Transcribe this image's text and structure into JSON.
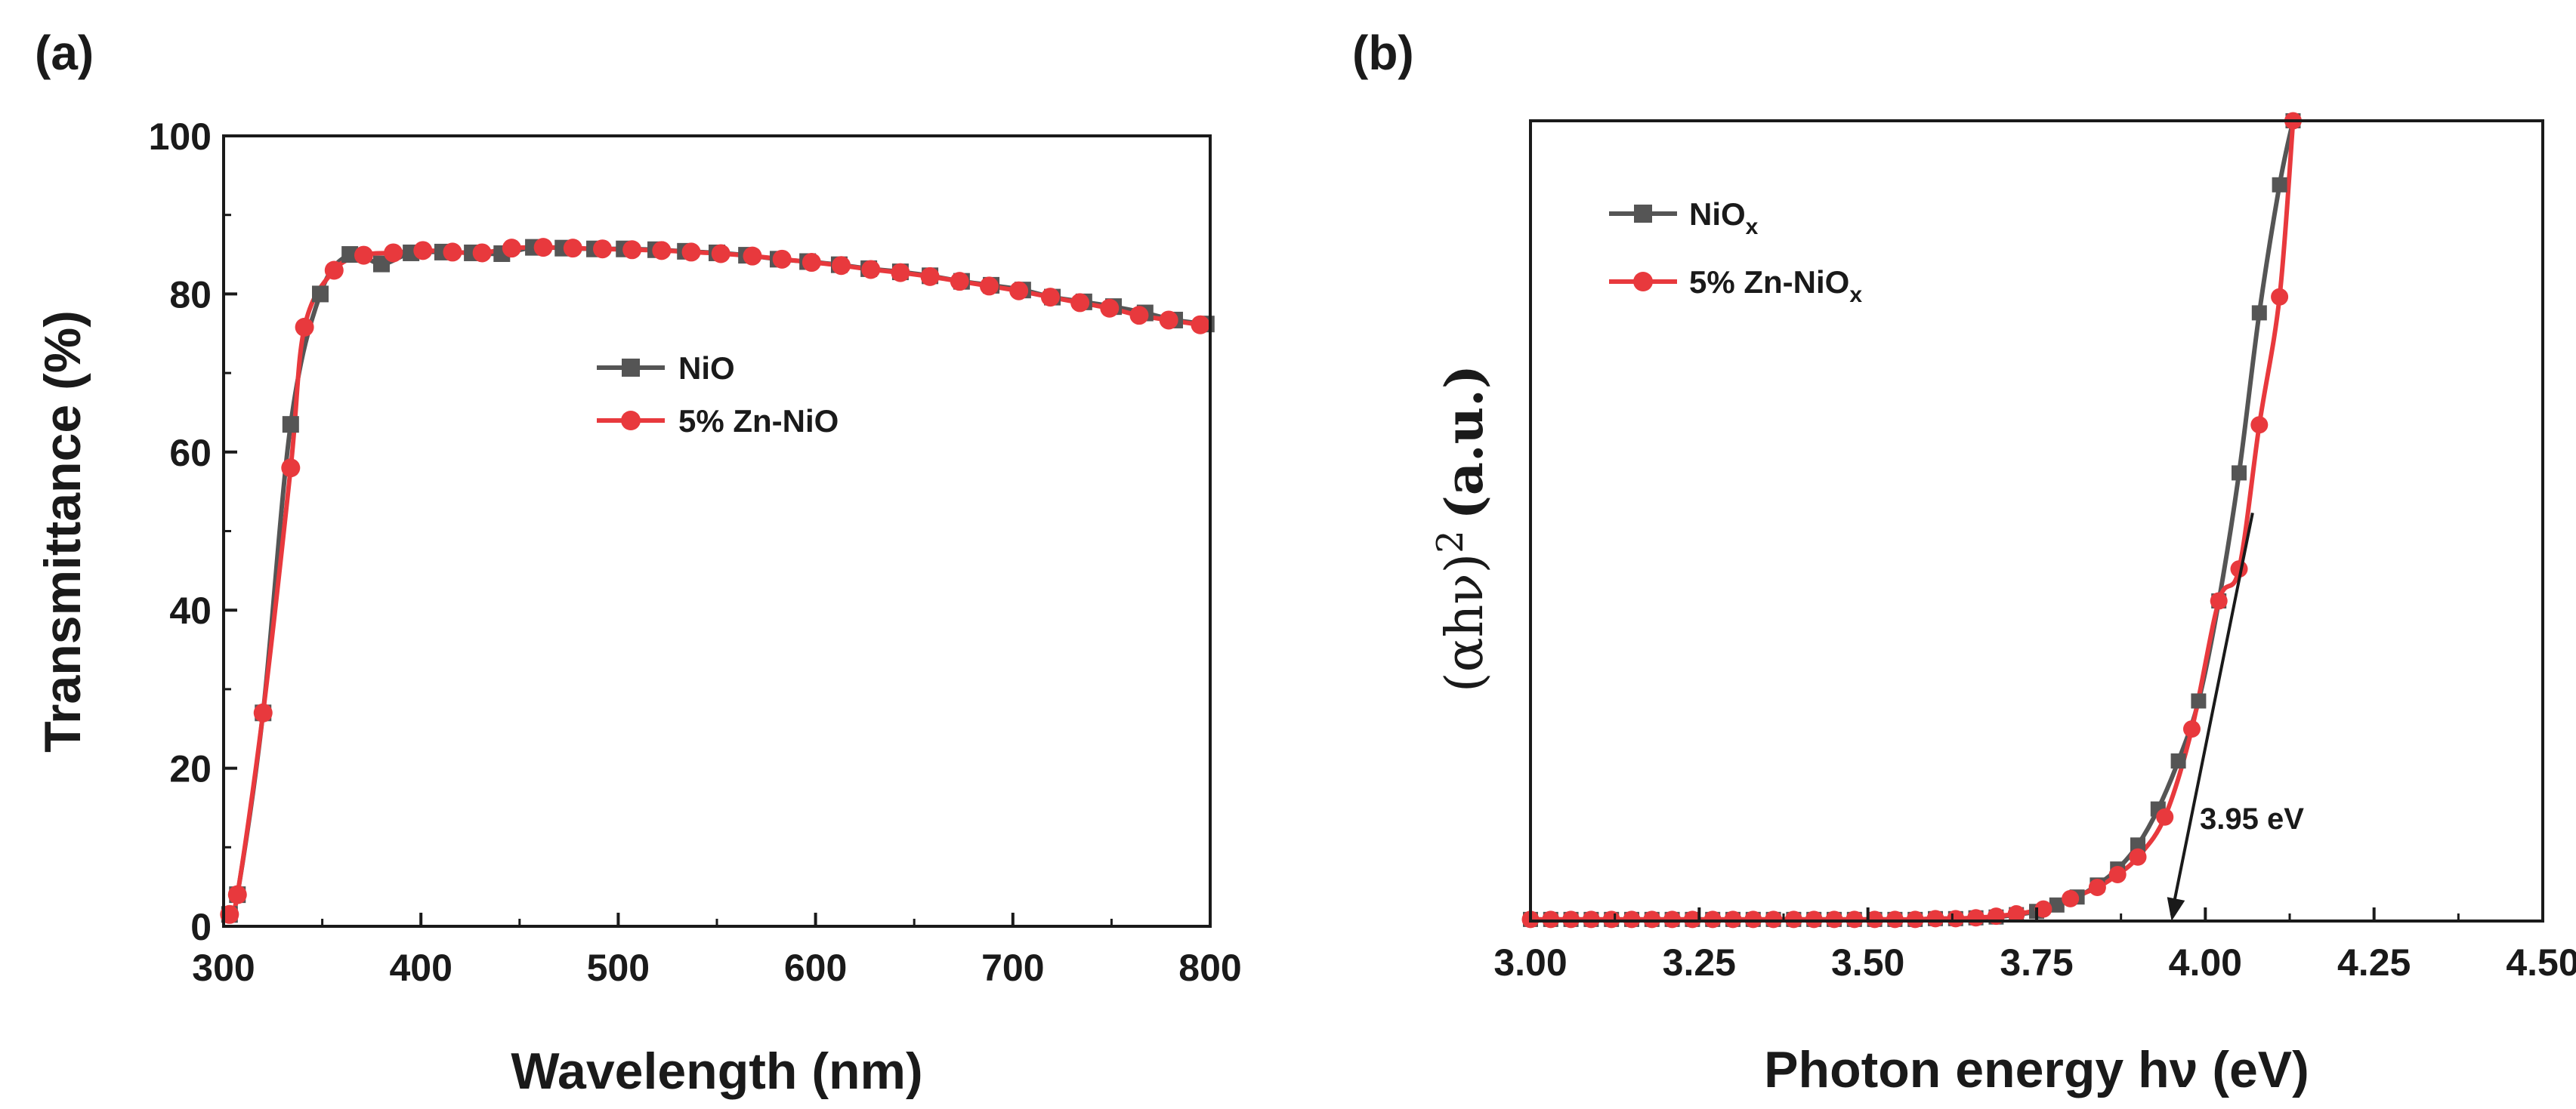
{
  "chart_data": [
    {
      "panel": "(a)",
      "type": "line",
      "xlabel": "Wavelength (nm)",
      "ylabel": "Transmittance (%)",
      "xlim": [
        300,
        800
      ],
      "ylim": [
        0,
        100
      ],
      "xticks": [
        "300",
        "400",
        "500",
        "600",
        "700",
        "800"
      ],
      "yticks": [
        "0",
        "20",
        "40",
        "60",
        "80",
        "100"
      ],
      "legend_position": "center",
      "grid": false,
      "series": [
        {
          "name": "NiO",
          "color": "#555555",
          "marker": "square",
          "x": [
            303,
            307,
            320,
            334,
            349,
            364,
            380,
            395,
            411,
            426,
            441,
            457,
            472,
            488,
            503,
            519,
            534,
            550,
            565,
            581,
            596,
            612,
            627,
            643,
            658,
            674,
            689,
            705,
            720,
            736,
            751,
            767,
            782,
            798
          ],
          "y": [
            1.5,
            4,
            27,
            63.5,
            80,
            85,
            83.8,
            85.2,
            85.3,
            85.2,
            85.1,
            85.9,
            85.8,
            85.7,
            85.7,
            85.6,
            85.4,
            85.2,
            84.9,
            84.4,
            84.1,
            83.7,
            83.2,
            82.8,
            82.3,
            81.6,
            81.1,
            80.5,
            79.6,
            79,
            78.4,
            77.6,
            76.7,
            76.2
          ]
        },
        {
          "name": "5% Zn-NiO",
          "color": "#e8393d",
          "marker": "circle",
          "x": [
            303,
            307,
            320,
            334,
            341,
            356,
            371,
            386,
            401,
            416,
            431,
            446,
            462,
            477,
            492,
            507,
            522,
            537,
            552,
            568,
            583,
            598,
            613,
            628,
            643,
            658,
            673,
            688,
            703,
            719,
            734,
            749,
            764,
            779,
            795
          ],
          "y": [
            1.5,
            4,
            27,
            58,
            75.8,
            83,
            84.9,
            85.2,
            85.5,
            85.3,
            85.2,
            85.8,
            85.9,
            85.8,
            85.7,
            85.6,
            85.5,
            85.3,
            85.1,
            84.8,
            84.4,
            84,
            83.6,
            83.1,
            82.7,
            82.2,
            81.6,
            81,
            80.4,
            79.6,
            78.9,
            78.2,
            77.3,
            76.7,
            76.1
          ]
        }
      ]
    },
    {
      "panel": "(b)",
      "type": "line",
      "xlabel": "Photon energy hν (eV)",
      "ylabel": "(αhν)² (a.u.)",
      "xlim": [
        3.0,
        4.5
      ],
      "ylim": [
        0,
        100
      ],
      "xticks": [
        "3.00",
        "3.25",
        "3.50",
        "3.75",
        "4.00",
        "4.25",
        "4.50"
      ],
      "legend_position": "top-left",
      "grid": false,
      "annotation": "3.95 eV",
      "tangent_line": {
        "x": [
          3.95,
          4.07
        ],
        "y": [
          0,
          51
        ]
      },
      "series": [
        {
          "name": "NiOx",
          "color": "#555555",
          "marker": "square",
          "x": [
            3.0,
            3.03,
            3.06,
            3.09,
            3.12,
            3.15,
            3.18,
            3.21,
            3.24,
            3.27,
            3.3,
            3.33,
            3.36,
            3.39,
            3.42,
            3.45,
            3.48,
            3.51,
            3.54,
            3.57,
            3.6,
            3.63,
            3.66,
            3.69,
            3.72,
            3.75,
            3.78,
            3.81,
            3.84,
            3.87,
            3.9,
            3.93,
            3.96,
            3.99,
            4.02,
            4.05,
            4.08,
            4.11,
            4.13
          ],
          "y": [
            0.2,
            0.2,
            0.2,
            0.2,
            0.2,
            0.2,
            0.2,
            0.2,
            0.2,
            0.2,
            0.2,
            0.2,
            0.2,
            0.2,
            0.2,
            0.2,
            0.2,
            0.2,
            0.2,
            0.2,
            0.3,
            0.3,
            0.4,
            0.5,
            0.8,
            1.2,
            2,
            3,
            4.5,
            6.5,
            9.5,
            14,
            20,
            27.5,
            40,
            56,
            76,
            92,
            100
          ]
        },
        {
          "name": "5% Zn-NiOx",
          "color": "#e8393d",
          "marker": "circle",
          "x": [
            3.0,
            3.03,
            3.06,
            3.09,
            3.12,
            3.15,
            3.18,
            3.21,
            3.24,
            3.27,
            3.3,
            3.33,
            3.36,
            3.39,
            3.42,
            3.45,
            3.48,
            3.51,
            3.54,
            3.57,
            3.6,
            3.63,
            3.66,
            3.69,
            3.72,
            3.76,
            3.8,
            3.84,
            3.87,
            3.9,
            3.94,
            3.98,
            4.02,
            4.05,
            4.08,
            4.11,
            4.13
          ],
          "y": [
            0.2,
            0.2,
            0.2,
            0.2,
            0.2,
            0.2,
            0.2,
            0.2,
            0.2,
            0.2,
            0.2,
            0.2,
            0.2,
            0.2,
            0.2,
            0.2,
            0.2,
            0.2,
            0.2,
            0.2,
            0.3,
            0.3,
            0.4,
            0.6,
            0.9,
            1.5,
            2.8,
            4.2,
            5.8,
            8,
            13,
            24,
            40,
            44,
            62,
            78,
            100
          ]
        }
      ]
    }
  ],
  "legend_b": {
    "nio_base": "NiO",
    "nio_sub": "x",
    "zn_base": "5% Zn-NiO",
    "zn_sub": "x"
  },
  "ylabel_b_parts": {
    "paren": "(αhν)",
    "sup": "2",
    "unit": "(a.u.)"
  }
}
